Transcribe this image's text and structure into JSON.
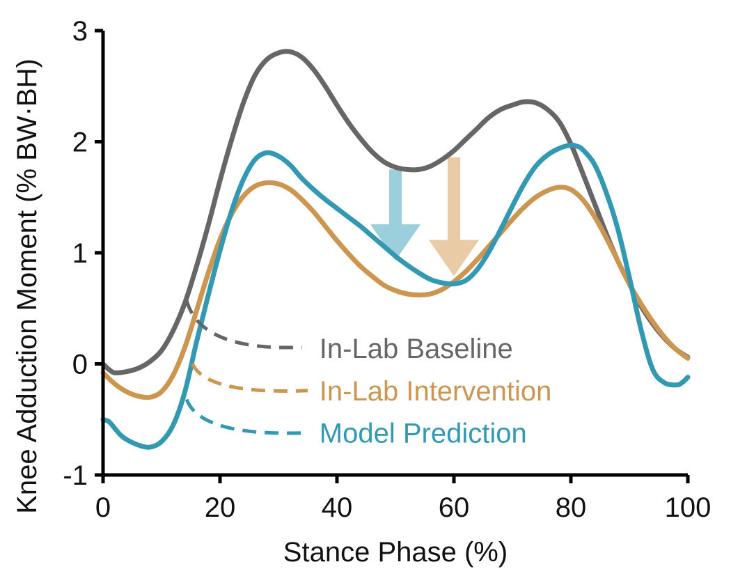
{
  "chart_data": {
    "type": "line",
    "title": "",
    "xlabel": "Stance Phase (%)",
    "ylabel": "Knee Adduction Moment (% BW·BH)",
    "xlim": [
      0,
      100
    ],
    "ylim": [
      -1,
      3
    ],
    "xticks": [
      0,
      20,
      40,
      60,
      80,
      100
    ],
    "yticks": [
      -1,
      0,
      1,
      2,
      3
    ],
    "xtick_labels": [
      "0",
      "20",
      "40",
      "60",
      "80",
      "100"
    ],
    "ytick_labels": [
      "-1",
      "0",
      "1",
      "2",
      "3"
    ],
    "grid": false,
    "legend": "inline-labels-lower-center",
    "series": [
      {
        "name": "In-Lab Baseline",
        "color": "#666666",
        "x": [
          0,
          1,
          2,
          4,
          6,
          8,
          10,
          12,
          14,
          16,
          18,
          20,
          22,
          24,
          26,
          28,
          30,
          32,
          34,
          36,
          38,
          40,
          42,
          44,
          46,
          48,
          50,
          52,
          54,
          56,
          58,
          60,
          62,
          64,
          66,
          68,
          70,
          72,
          74,
          76,
          78,
          80,
          82,
          84,
          86,
          88,
          90,
          92,
          94,
          96,
          98,
          100
        ],
        "y": [
          0.0,
          -0.05,
          -0.08,
          -0.07,
          -0.04,
          0.02,
          0.12,
          0.3,
          0.55,
          0.88,
          1.25,
          1.65,
          2.02,
          2.35,
          2.6,
          2.74,
          2.8,
          2.81,
          2.76,
          2.65,
          2.5,
          2.33,
          2.17,
          2.03,
          1.91,
          1.82,
          1.77,
          1.75,
          1.75,
          1.78,
          1.84,
          1.92,
          2.02,
          2.12,
          2.22,
          2.29,
          2.33,
          2.36,
          2.35,
          2.29,
          2.18,
          1.98,
          1.72,
          1.45,
          1.18,
          0.93,
          0.72,
          0.52,
          0.36,
          0.23,
          0.13,
          0.06
        ]
      },
      {
        "name": "In-Lab Intervention",
        "color": "#CC9650",
        "x": [
          0,
          2,
          4,
          6,
          8,
          10,
          12,
          14,
          16,
          18,
          20,
          22,
          24,
          26,
          28,
          30,
          32,
          34,
          36,
          38,
          40,
          42,
          44,
          46,
          48,
          50,
          52,
          54,
          56,
          58,
          60,
          62,
          64,
          66,
          68,
          70,
          72,
          74,
          76,
          78,
          80,
          82,
          84,
          86,
          88,
          90,
          92,
          94,
          96,
          98,
          100
        ],
        "y": [
          -0.08,
          -0.18,
          -0.25,
          -0.29,
          -0.3,
          -0.25,
          -0.1,
          0.15,
          0.48,
          0.82,
          1.12,
          1.35,
          1.51,
          1.6,
          1.63,
          1.62,
          1.57,
          1.48,
          1.37,
          1.24,
          1.11,
          0.99,
          0.88,
          0.79,
          0.71,
          0.66,
          0.63,
          0.62,
          0.63,
          0.67,
          0.74,
          0.83,
          0.94,
          1.06,
          1.18,
          1.3,
          1.41,
          1.5,
          1.56,
          1.59,
          1.57,
          1.48,
          1.33,
          1.14,
          0.93,
          0.72,
          0.54,
          0.38,
          0.24,
          0.13,
          0.05
        ]
      },
      {
        "name": "Model Prediction",
        "color": "#3399B3",
        "x": [
          0,
          1,
          2,
          3,
          4,
          6,
          8,
          10,
          12,
          14,
          16,
          18,
          20,
          22,
          24,
          26,
          28,
          30,
          32,
          34,
          36,
          38,
          40,
          42,
          44,
          46,
          48,
          50,
          52,
          54,
          56,
          58,
          60,
          62,
          64,
          66,
          68,
          70,
          72,
          74,
          76,
          78,
          80,
          81,
          82,
          84,
          86,
          88,
          90,
          92,
          94,
          96,
          98,
          99,
          100
        ],
        "y": [
          -0.5,
          -0.52,
          -0.58,
          -0.64,
          -0.68,
          -0.73,
          -0.75,
          -0.7,
          -0.55,
          -0.25,
          0.2,
          0.62,
          1.02,
          1.38,
          1.66,
          1.84,
          1.9,
          1.87,
          1.79,
          1.67,
          1.57,
          1.48,
          1.4,
          1.32,
          1.24,
          1.15,
          1.06,
          0.97,
          0.89,
          0.82,
          0.76,
          0.73,
          0.72,
          0.75,
          0.85,
          1.01,
          1.21,
          1.42,
          1.62,
          1.78,
          1.88,
          1.94,
          1.97,
          1.96,
          1.93,
          1.8,
          1.55,
          1.22,
          0.78,
          0.31,
          -0.05,
          -0.17,
          -0.19,
          -0.17,
          -0.12
        ]
      }
    ],
    "legend_labels": [
      {
        "text": "In-Lab Baseline",
        "color": "#666666",
        "leader_from": [
          14.3,
          0.57
        ],
        "leader_to": [
          34,
          0.15
        ],
        "text_at": [
          37,
          0.14
        ]
      },
      {
        "text": "In-Lab Intervention",
        "color": "#CC9650",
        "leader_from": [
          15.3,
          0.0
        ],
        "leader_to": [
          35,
          -0.24
        ],
        "text_at": [
          37,
          -0.24
        ]
      },
      {
        "text": "Model Prediction",
        "color": "#3399B3",
        "leader_from": [
          14.3,
          -0.32
        ],
        "leader_to": [
          35,
          -0.62
        ],
        "text_at": [
          37,
          -0.62
        ]
      }
    ],
    "annotations": [
      {
        "type": "arrow-down",
        "color": "#9ACFDB",
        "x": 50,
        "from_y": 1.75,
        "to_y": 0.93
      },
      {
        "type": "arrow-down",
        "color": "#E9CCA5",
        "x": 60,
        "from_y": 1.86,
        "to_y": 0.79
      }
    ]
  }
}
